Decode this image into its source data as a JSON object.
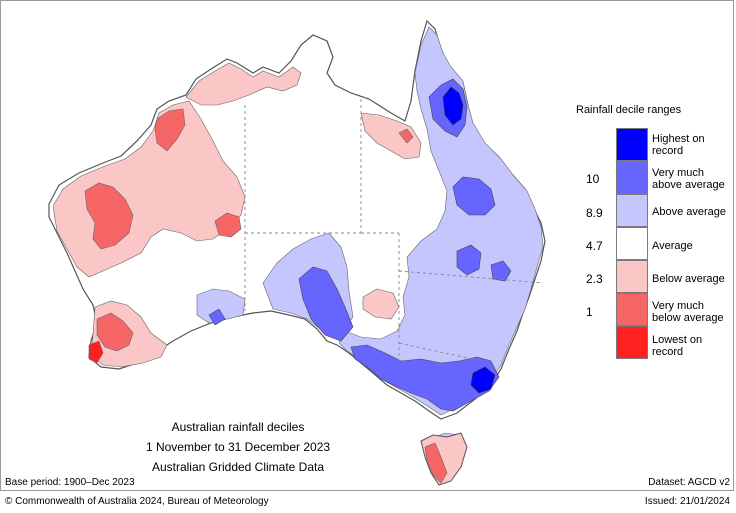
{
  "legend": {
    "title": "Rainfall decile ranges",
    "items": [
      {
        "label_line1": "Highest on",
        "label_line2": "record",
        "color": "#0000ff"
      },
      {
        "label_line1": "Very much",
        "label_line2": "above average",
        "color": "#6666ff"
      },
      {
        "label_line1": "Above average",
        "label_line2": "",
        "color": "#c6c6ff"
      },
      {
        "label_line1": "Average",
        "label_line2": "",
        "color": "#ffffff"
      },
      {
        "label_line1": "Below average",
        "label_line2": "",
        "color": "#fbc6c6"
      },
      {
        "label_line1": "Very much",
        "label_line2": "below average",
        "color": "#f76666"
      },
      {
        "label_line1": "Lowest on",
        "label_line2": "record",
        "color": "#ff2020"
      }
    ],
    "thresholds": [
      "10",
      "8.9",
      "4.7",
      "2.3",
      "1"
    ]
  },
  "caption": {
    "line1": "Australian rainfall deciles",
    "line2": "1 November to 31 December 2023",
    "line3": "Australian Gridded Climate Data"
  },
  "footer": {
    "base_period": "Base period: 1900–Dec 2023",
    "dataset": "Dataset: AGCD v2",
    "copyright": "© Commonwealth of Australia 2024, Bureau of Meteorology",
    "issued": "Issued: 21/01/2024"
  }
}
